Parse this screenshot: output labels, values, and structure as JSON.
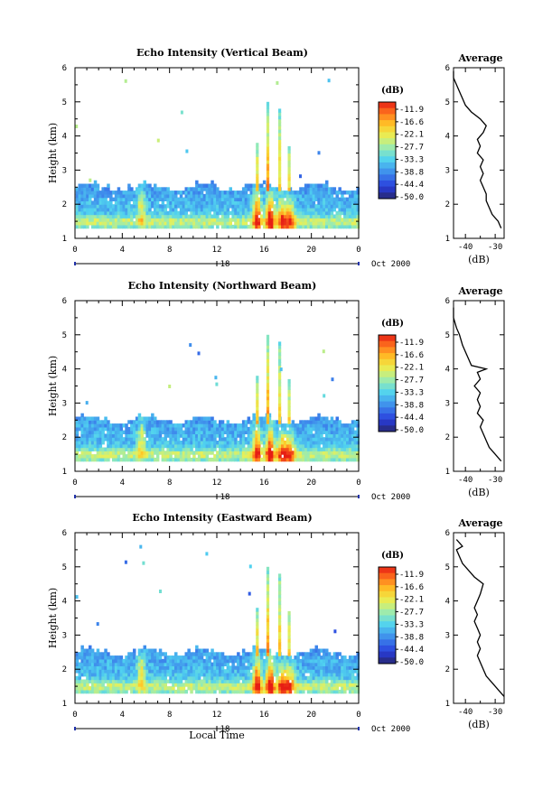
{
  "figure": {
    "x_axis_label": "Local Time",
    "date_label": "Oct 2000",
    "date_center": "18",
    "colorbar_unit": "(dB)"
  },
  "chart_data": [
    {
      "type": "heatmap",
      "title": "Echo Intensity (Vertical Beam)",
      "ylabel": "Height (km)",
      "xlabel": "",
      "x_ticks": [
        "0",
        "4",
        "8",
        "12",
        "16",
        "20",
        "0"
      ],
      "xlim": [
        0,
        24
      ],
      "ylim": [
        1,
        6
      ],
      "y_ticks": [
        "1",
        "2",
        "3",
        "4",
        "5",
        "6"
      ],
      "colorbar_ticks": [
        "-11.9",
        "-16.6",
        "-22.1",
        "-27.7",
        "-33.3",
        "-38.8",
        "-44.4",
        "-50.0"
      ],
      "profile": {
        "title": "Average",
        "xlabel": "(dB)",
        "x_ticks": [
          "-40",
          "-30"
        ],
        "xlim": [
          -44,
          -27
        ],
        "ylim": [
          1,
          6
        ],
        "points": [
          [
            -28,
            1.3
          ],
          [
            -29,
            1.5
          ],
          [
            -31,
            1.7
          ],
          [
            -32,
            1.9
          ],
          [
            -33,
            2.1
          ],
          [
            -33,
            2.3
          ],
          [
            -34,
            2.5
          ],
          [
            -35,
            2.7
          ],
          [
            -34,
            2.9
          ],
          [
            -35,
            3.1
          ],
          [
            -34,
            3.3
          ],
          [
            -36,
            3.5
          ],
          [
            -35,
            3.7
          ],
          [
            -36,
            3.9
          ],
          [
            -34,
            4.1
          ],
          [
            -33,
            4.3
          ],
          [
            -35,
            4.5
          ],
          [
            -38,
            4.7
          ],
          [
            -40,
            4.9
          ],
          [
            -41,
            5.1
          ],
          [
            -42,
            5.3
          ],
          [
            -43,
            5.5
          ],
          [
            -44,
            5.7
          ],
          [
            -44,
            5.9
          ]
        ]
      }
    },
    {
      "type": "heatmap",
      "title": "Echo Intensity (Northward Beam)",
      "ylabel": "Height (km)",
      "xlabel": "",
      "x_ticks": [
        "0",
        "4",
        "8",
        "12",
        "16",
        "20",
        "0"
      ],
      "xlim": [
        0,
        24
      ],
      "ylim": [
        1,
        6
      ],
      "y_ticks": [
        "1",
        "2",
        "3",
        "4",
        "5",
        "6"
      ],
      "colorbar_ticks": [
        "-11.9",
        "-16.6",
        "-22.1",
        "-27.7",
        "-33.3",
        "-38.8",
        "-44.4",
        "-50.0"
      ],
      "profile": {
        "title": "Average",
        "xlabel": "(dB)",
        "x_ticks": [
          "-40",
          "-30"
        ],
        "xlim": [
          -44,
          -27
        ],
        "ylim": [
          1,
          6
        ],
        "points": [
          [
            -28,
            1.3
          ],
          [
            -30,
            1.5
          ],
          [
            -32,
            1.7
          ],
          [
            -33,
            1.9
          ],
          [
            -34,
            2.1
          ],
          [
            -35,
            2.3
          ],
          [
            -34,
            2.5
          ],
          [
            -36,
            2.7
          ],
          [
            -35,
            2.9
          ],
          [
            -36,
            3.1
          ],
          [
            -35,
            3.3
          ],
          [
            -37,
            3.5
          ],
          [
            -35,
            3.7
          ],
          [
            -36,
            3.9
          ],
          [
            -33,
            4.0
          ],
          [
            -38,
            4.1
          ],
          [
            -39,
            4.3
          ],
          [
            -40,
            4.5
          ],
          [
            -41,
            4.7
          ],
          [
            -42,
            5.0
          ],
          [
            -43,
            5.2
          ],
          [
            -44,
            5.5
          ],
          [
            -44,
            5.8
          ]
        ]
      }
    },
    {
      "type": "heatmap",
      "title": "Echo Intensity (Eastward Beam)",
      "ylabel": "Height (km)",
      "xlabel": "Local Time",
      "x_ticks": [
        "0",
        "4",
        "8",
        "12",
        "16",
        "20",
        "0"
      ],
      "xlim": [
        0,
        24
      ],
      "ylim": [
        1,
        6
      ],
      "y_ticks": [
        "1",
        "2",
        "3",
        "4",
        "5",
        "6"
      ],
      "colorbar_ticks": [
        "-11.9",
        "-16.6",
        "-22.1",
        "-27.7",
        "-33.3",
        "-38.8",
        "-44.4",
        "-50.0"
      ],
      "profile": {
        "title": "Average",
        "xlabel": "(dB)",
        "x_ticks": [
          "-40",
          "-30"
        ],
        "xlim": [
          -44,
          -27
        ],
        "ylim": [
          1,
          6
        ],
        "points": [
          [
            -27,
            1.2
          ],
          [
            -29,
            1.4
          ],
          [
            -31,
            1.6
          ],
          [
            -33,
            1.8
          ],
          [
            -34,
            2.0
          ],
          [
            -35,
            2.2
          ],
          [
            -36,
            2.4
          ],
          [
            -35,
            2.6
          ],
          [
            -36,
            2.8
          ],
          [
            -35,
            3.0
          ],
          [
            -36,
            3.2
          ],
          [
            -37,
            3.4
          ],
          [
            -36,
            3.6
          ],
          [
            -37,
            3.8
          ],
          [
            -36,
            4.0
          ],
          [
            -35,
            4.2
          ],
          [
            -34,
            4.5
          ],
          [
            -37,
            4.7
          ],
          [
            -39,
            4.9
          ],
          [
            -41,
            5.1
          ],
          [
            -42,
            5.3
          ],
          [
            -43,
            5.5
          ],
          [
            -41,
            5.6
          ],
          [
            -43,
            5.8
          ]
        ]
      }
    }
  ]
}
